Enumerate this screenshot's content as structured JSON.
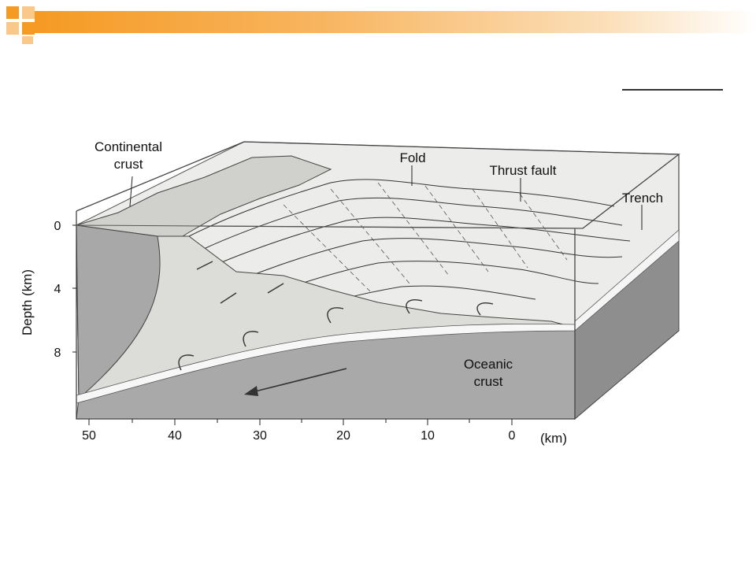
{
  "slide": {
    "accent_color": "#F59A23",
    "accent_light": "#FAC98A"
  },
  "diagram": {
    "labels": {
      "continental_crust_line1": "Continental",
      "continental_crust_line2": "crust",
      "fold": "Fold",
      "thrust_fault": "Thrust fault",
      "trench": "Trench",
      "oceanic_crust_line1": "Oceanic",
      "oceanic_crust_line2": "crust"
    },
    "depth_axis": {
      "title": "Depth (km)",
      "ticks": [
        "0",
        "4",
        "8"
      ]
    },
    "distance_axis": {
      "unit": "(km)",
      "ticks": [
        "50",
        "40",
        "30",
        "20",
        "10",
        "0"
      ]
    }
  }
}
